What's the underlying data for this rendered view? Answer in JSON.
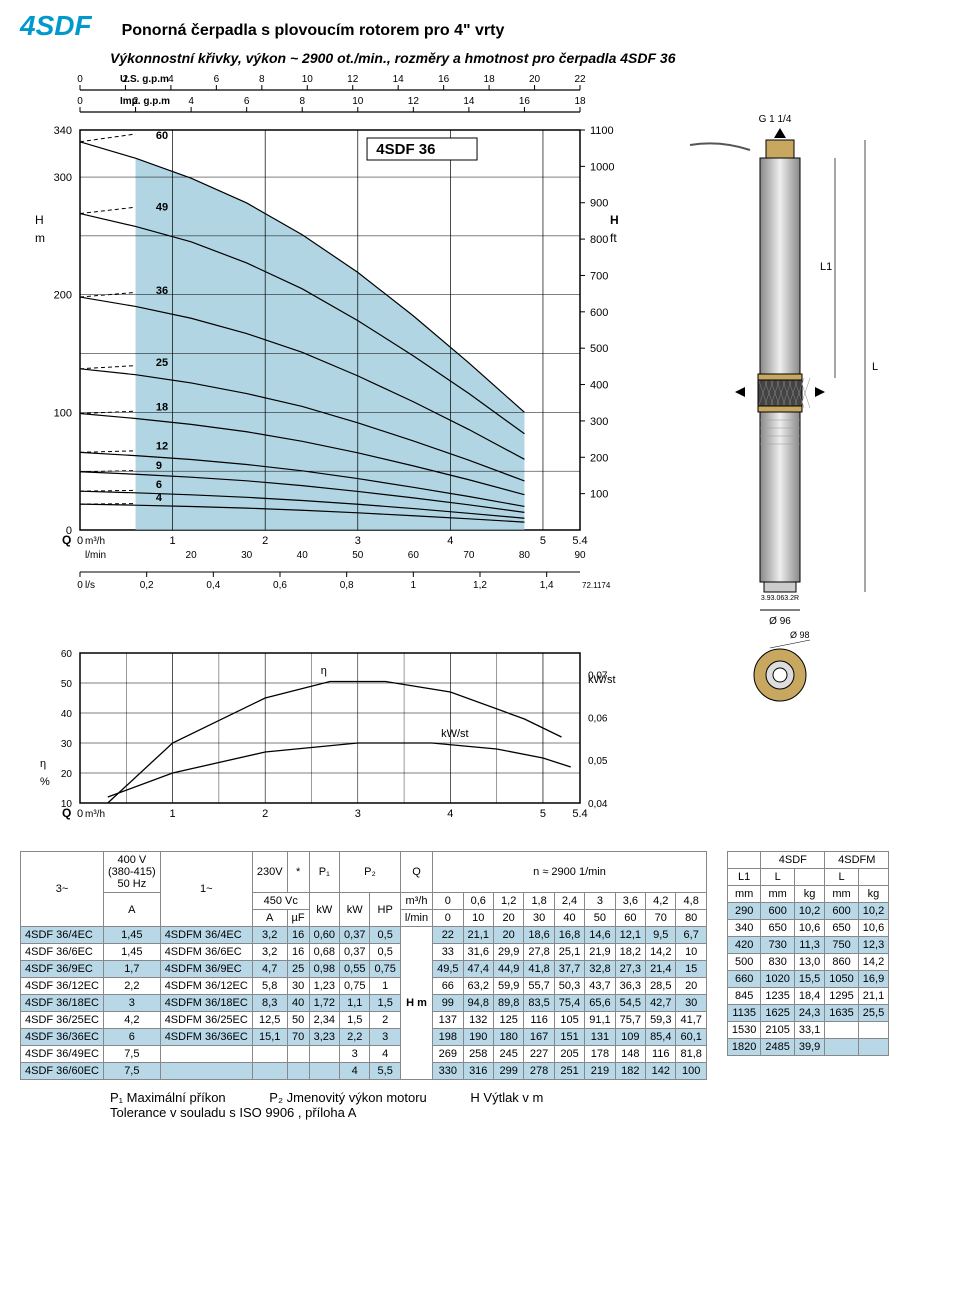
{
  "header": {
    "title": "4SDF",
    "subtitle": "Ponorná čerpadla s plovoucím rotorem pro 4\" vrty",
    "curveDesc": "Výkonnostní křivky, výkon ~ 2900 ot./min., rozměry a hmotnost pro čerpadla 4SDF 36"
  },
  "mainChart": {
    "title": "4SDF 36",
    "bg": "#ffffff",
    "fillColor": "#a8d0e0",
    "lineColor": "#000000",
    "gridColor": "#000000",
    "yLabel": "H\nm",
    "yLabelR": "H\nft",
    "xLabelTop1": "U.S. g.p.m",
    "xLabelTop2": "Imp. g.p.m",
    "xLabel1": "m³/h",
    "xLabel2": "l/min",
    "xLabel3": "l/s",
    "qLabel": "Q",
    "yTicks": [
      0,
      100,
      200,
      300,
      340
    ],
    "yTicksR": [
      100,
      200,
      300,
      400,
      500,
      600,
      700,
      800,
      900,
      1000,
      1100
    ],
    "xTicksM3h": [
      0,
      1,
      2,
      3,
      4,
      5,
      5.4
    ],
    "xTicksLmin": [
      20,
      30,
      40,
      50,
      60,
      70,
      80,
      90
    ],
    "xTicksLs": [
      0,
      0.2,
      0.4,
      0.6,
      0.8,
      1.0,
      1.2,
      1.4
    ],
    "xTicksUS": [
      0,
      2,
      4,
      6,
      8,
      10,
      12,
      14,
      16,
      18,
      20,
      22
    ],
    "xTicksImp": [
      0,
      2,
      4,
      6,
      8,
      10,
      12,
      14,
      16,
      18
    ],
    "curves": [
      {
        "label": "60",
        "pts": [
          [
            0,
            330
          ],
          [
            0.6,
            316
          ],
          [
            1.2,
            299
          ],
          [
            1.8,
            278
          ],
          [
            2.4,
            251
          ],
          [
            3,
            219
          ],
          [
            3.6,
            182
          ],
          [
            4.2,
            142
          ],
          [
            4.8,
            100
          ]
        ]
      },
      {
        "label": "49",
        "pts": [
          [
            0,
            269
          ],
          [
            0.6,
            258
          ],
          [
            1.2,
            245
          ],
          [
            1.8,
            227
          ],
          [
            2.4,
            205
          ],
          [
            3,
            178
          ],
          [
            3.6,
            148
          ],
          [
            4.2,
            116
          ],
          [
            4.8,
            81.8
          ]
        ]
      },
      {
        "label": "36",
        "pts": [
          [
            0,
            198
          ],
          [
            0.6,
            190
          ],
          [
            1.2,
            180
          ],
          [
            1.8,
            167
          ],
          [
            2.4,
            151
          ],
          [
            3,
            131
          ],
          [
            3.6,
            109
          ],
          [
            4.2,
            85.4
          ],
          [
            4.8,
            60.1
          ]
        ]
      },
      {
        "label": "25",
        "pts": [
          [
            0,
            137
          ],
          [
            0.6,
            132
          ],
          [
            1.2,
            125
          ],
          [
            1.8,
            116
          ],
          [
            2.4,
            105
          ],
          [
            3,
            91.1
          ],
          [
            3.6,
            75.7
          ],
          [
            4.2,
            59.3
          ],
          [
            4.8,
            41.7
          ]
        ]
      },
      {
        "label": "18",
        "pts": [
          [
            0,
            99
          ],
          [
            0.6,
            94.8
          ],
          [
            1.2,
            89.8
          ],
          [
            1.8,
            83.5
          ],
          [
            2.4,
            75.4
          ],
          [
            3,
            65.6
          ],
          [
            3.6,
            54.5
          ],
          [
            4.2,
            42.7
          ],
          [
            4.8,
            30
          ]
        ]
      },
      {
        "label": "12",
        "pts": [
          [
            0,
            66
          ],
          [
            0.6,
            63.2
          ],
          [
            1.2,
            59.9
          ],
          [
            1.8,
            55.7
          ],
          [
            2.4,
            50.3
          ],
          [
            3,
            43.7
          ],
          [
            3.6,
            36.3
          ],
          [
            4.2,
            28.5
          ],
          [
            4.8,
            20
          ]
        ]
      },
      {
        "label": "9",
        "pts": [
          [
            0,
            49.5
          ],
          [
            0.6,
            47.4
          ],
          [
            1.2,
            44.9
          ],
          [
            1.8,
            41.8
          ],
          [
            2.4,
            37.7
          ],
          [
            3,
            32.8
          ],
          [
            3.6,
            27.3
          ],
          [
            4.2,
            21.4
          ],
          [
            4.8,
            15
          ]
        ]
      },
      {
        "label": "6",
        "pts": [
          [
            0,
            33
          ],
          [
            0.6,
            31.6
          ],
          [
            1.2,
            29.9
          ],
          [
            1.8,
            27.8
          ],
          [
            2.4,
            25.1
          ],
          [
            3,
            21.9
          ],
          [
            3.6,
            18.2
          ],
          [
            4.2,
            14.2
          ],
          [
            4.8,
            10
          ]
        ]
      },
      {
        "label": "4",
        "pts": [
          [
            0,
            22
          ],
          [
            0.6,
            21.1
          ],
          [
            1.2,
            20
          ],
          [
            1.8,
            18.6
          ],
          [
            2.4,
            16.8
          ],
          [
            3,
            14.6
          ],
          [
            3.6,
            12.1
          ],
          [
            4.2,
            9.5
          ],
          [
            4.8,
            6.7
          ]
        ]
      }
    ],
    "xlim": [
      0,
      5.4
    ],
    "ylim": [
      0,
      340
    ],
    "opRange": {
      "xmin": 0.6,
      "xmax": 4.8
    },
    "refCode": "72.1174"
  },
  "effChart": {
    "etaLabel": "η",
    "pctLabel": "%",
    "kwstLabel": "kW/st",
    "yTicks": [
      10,
      20,
      30,
      40,
      50,
      60
    ],
    "yTicksR": [
      0.04,
      0.05,
      0.06,
      0.07
    ],
    "xTicks": [
      0,
      1,
      2,
      3,
      4,
      5,
      5.4
    ],
    "xLabel": "m³/h",
    "qLabel": "Q",
    "eta": [
      [
        0.3,
        10
      ],
      [
        1,
        30
      ],
      [
        2,
        45
      ],
      [
        2.7,
        50.5
      ],
      [
        3.3,
        50.5
      ],
      [
        4,
        47
      ],
      [
        4.8,
        38
      ],
      [
        5.2,
        32
      ]
    ],
    "kwst": [
      [
        0.3,
        12
      ],
      [
        1,
        20
      ],
      [
        2,
        27
      ],
      [
        3,
        30
      ],
      [
        3.8,
        30
      ],
      [
        4.5,
        28
      ],
      [
        5,
        25
      ],
      [
        5.3,
        22
      ]
    ]
  },
  "pumpDiagram": {
    "topConn": "G 1 1/4",
    "l1": "L1",
    "l": "L",
    "dia": "Ø 96",
    "diaTop": "Ø 98",
    "code": "3.93.063.2R"
  },
  "tableMain": {
    "headers": {
      "c3": "3~",
      "c400": "400 V\n(380-415)\n50 Hz",
      "cA1": "A",
      "c1": "1~",
      "c230": "230V",
      "cStar": "*",
      "c450": "450 Vc",
      "cA2": "A",
      "cuF": "µF",
      "cP1": "P₁",
      "ckW1": "kW",
      "cP2": "P₂",
      "ckW2": "kW",
      "cHP": "HP",
      "cQ": "Q",
      "cm3h": "m³/h",
      "clmin": "l/min",
      "cn": "n ≈ 2900 1/min",
      "cHm": "H  m",
      "qvals": [
        "0",
        "0,6",
        "1,2",
        "1,8",
        "2,4",
        "3",
        "3,6",
        "4,2",
        "4,8"
      ],
      "lvals": [
        "0",
        "10",
        "20",
        "30",
        "40",
        "50",
        "60",
        "70",
        "80"
      ]
    },
    "rows": [
      {
        "m3": "4SDF 36/4EC",
        "a1": "1,45",
        "m1": "4SDFM 36/4EC",
        "a2": "3,2",
        "uf": "16",
        "p1": "0,60",
        "p2kw": "0,37",
        "p2hp": "0,5",
        "h": [
          "22",
          "21,1",
          "20",
          "18,6",
          "16,8",
          "14,6",
          "12,1",
          "9,5",
          "6,7"
        ],
        "alt": true
      },
      {
        "m3": "4SDF 36/6EC",
        "a1": "1,45",
        "m1": "4SDFM 36/6EC",
        "a2": "3,2",
        "uf": "16",
        "p1": "0,68",
        "p2kw": "0,37",
        "p2hp": "0,5",
        "h": [
          "33",
          "31,6",
          "29,9",
          "27,8",
          "25,1",
          "21,9",
          "18,2",
          "14,2",
          "10"
        ]
      },
      {
        "m3": "4SDF 36/9EC",
        "a1": "1,7",
        "m1": "4SDFM 36/9EC",
        "a2": "4,7",
        "uf": "25",
        "p1": "0,98",
        "p2kw": "0,55",
        "p2hp": "0,75",
        "h": [
          "49,5",
          "47,4",
          "44,9",
          "41,8",
          "37,7",
          "32,8",
          "27,3",
          "21,4",
          "15"
        ],
        "alt": true
      },
      {
        "m3": "4SDF 36/12EC",
        "a1": "2,2",
        "m1": "4SDFM 36/12EC",
        "a2": "5,8",
        "uf": "30",
        "p1": "1,23",
        "p2kw": "0,75",
        "p2hp": "1",
        "h": [
          "66",
          "63,2",
          "59,9",
          "55,7",
          "50,3",
          "43,7",
          "36,3",
          "28,5",
          "20"
        ]
      },
      {
        "m3": "4SDF 36/18EC",
        "a1": "3",
        "m1": "4SDFM 36/18EC",
        "a2": "8,3",
        "uf": "40",
        "p1": "1,72",
        "p2kw": "1,1",
        "p2hp": "1,5",
        "h": [
          "99",
          "94,8",
          "89,8",
          "83,5",
          "75,4",
          "65,6",
          "54,5",
          "42,7",
          "30"
        ],
        "alt": true
      },
      {
        "m3": "4SDF 36/25EC",
        "a1": "4,2",
        "m1": "4SDFM 36/25EC",
        "a2": "12,5",
        "uf": "50",
        "p1": "2,34",
        "p2kw": "1,5",
        "p2hp": "2",
        "h": [
          "137",
          "132",
          "125",
          "116",
          "105",
          "91,1",
          "75,7",
          "59,3",
          "41,7"
        ]
      },
      {
        "m3": "4SDF 36/36EC",
        "a1": "6",
        "m1": "4SDFM 36/36EC",
        "a2": "15,1",
        "uf": "70",
        "p1": "3,23",
        "p2kw": "2,2",
        "p2hp": "3",
        "h": [
          "198",
          "190",
          "180",
          "167",
          "151",
          "131",
          "109",
          "85,4",
          "60,1"
        ],
        "alt": true
      },
      {
        "m3": "4SDF 36/49EC",
        "a1": "7,5",
        "m1": "",
        "a2": "",
        "uf": "",
        "p1": "",
        "p2kw": "3",
        "p2hp": "4",
        "h": [
          "269",
          "258",
          "245",
          "227",
          "205",
          "178",
          "148",
          "116",
          "81,8"
        ]
      },
      {
        "m3": "4SDF 36/60EC",
        "a1": "7,5",
        "m1": "",
        "a2": "",
        "uf": "",
        "p1": "",
        "p2kw": "4",
        "p2hp": "5,5",
        "h": [
          "330",
          "316",
          "299",
          "278",
          "251",
          "219",
          "182",
          "142",
          "100"
        ],
        "alt": true
      }
    ]
  },
  "tableDim": {
    "h1": "4SDF",
    "h2": "4SDFM",
    "cols": [
      "L1",
      "L",
      "",
      "L",
      ""
    ],
    "units": [
      "mm",
      "mm",
      "kg",
      "mm",
      "kg"
    ],
    "rows": [
      {
        "d": [
          "290",
          "600",
          "10,2",
          "600",
          "10,2"
        ],
        "alt": true
      },
      {
        "d": [
          "340",
          "650",
          "10,6",
          "650",
          "10,6"
        ]
      },
      {
        "d": [
          "420",
          "730",
          "11,3",
          "750",
          "12,3"
        ],
        "alt": true
      },
      {
        "d": [
          "500",
          "830",
          "13,0",
          "860",
          "14,2"
        ]
      },
      {
        "d": [
          "660",
          "1020",
          "15,5",
          "1050",
          "16,9"
        ],
        "alt": true
      },
      {
        "d": [
          "845",
          "1235",
          "18,4",
          "1295",
          "21,1"
        ]
      },
      {
        "d": [
          "1135",
          "1625",
          "24,3",
          "1635",
          "25,5"
        ],
        "alt": true
      },
      {
        "d": [
          "1530",
          "2105",
          "33,1",
          "",
          ""
        ]
      },
      {
        "d": [
          "1820",
          "2485",
          "39,9",
          "",
          ""
        ],
        "alt": true
      }
    ]
  },
  "footer": {
    "p1": "P₁ Maximální příkon",
    "p2": "P₂ Jmenovitý výkon motoru",
    "h": "H Výtlak  v m",
    "tol": "Tolerance v souladu s ISO 9906 , příloha A"
  }
}
